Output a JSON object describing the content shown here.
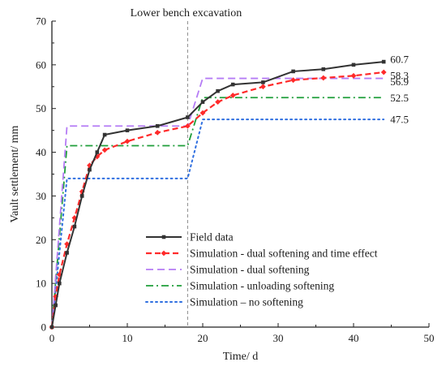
{
  "chart_data": {
    "type": "line",
    "title": "",
    "xlabel": "Time/ d",
    "ylabel": "Vault settlement/ mm",
    "xlim": [
      0,
      50
    ],
    "ylim": [
      0,
      70
    ],
    "x_ticks": [
      0,
      10,
      20,
      30,
      40,
      50
    ],
    "y_ticks": [
      0,
      10,
      20,
      30,
      40,
      50,
      60,
      70
    ],
    "grid": false,
    "legend_position": "bottom-right",
    "annotation": {
      "text": "Lower bench excavation",
      "x": 18
    },
    "series": [
      {
        "name": "Field data",
        "color": "#333333",
        "style": "solid-square-markers",
        "x": [
          0,
          0.5,
          1,
          2,
          3,
          4,
          5,
          6,
          7,
          10,
          14,
          18,
          20,
          22,
          24,
          28,
          32,
          36,
          40,
          44
        ],
        "y": [
          0,
          5,
          10,
          17,
          23,
          30,
          36,
          40,
          44,
          45,
          46,
          48,
          51.5,
          54,
          55.5,
          56,
          58.5,
          59,
          60,
          60.7
        ]
      },
      {
        "name": "Simulation - dual softening and time effect",
        "color": "#ff2a2a",
        "style": "dashed-diamond-markers",
        "x": [
          0,
          0.5,
          1,
          2,
          3,
          4,
          5,
          6,
          7,
          10,
          14,
          18,
          20,
          22,
          24,
          28,
          32,
          36,
          40,
          44
        ],
        "y": [
          0,
          7,
          12,
          19,
          25,
          31,
          37,
          39,
          40.5,
          42.5,
          44.5,
          46,
          49,
          51.5,
          53,
          55,
          56.5,
          57,
          57.5,
          58.3
        ]
      },
      {
        "name": "Simulation - dual softening",
        "color": "#b57cf5",
        "style": "dashed",
        "x": [
          0,
          2,
          18,
          20,
          44
        ],
        "y": [
          0,
          46,
          46,
          56.9,
          56.9
        ]
      },
      {
        "name": "Simulation - unloading softening",
        "color": "#1f9e3a",
        "style": "dash-dot",
        "x": [
          0,
          2,
          18,
          20,
          44
        ],
        "y": [
          0,
          41.5,
          41.5,
          52.5,
          52.5
        ]
      },
      {
        "name": "Simulation – no softening",
        "color": "#2f6fe0",
        "style": "dotted",
        "x": [
          0,
          2,
          18,
          20,
          44
        ],
        "y": [
          0,
          34,
          34,
          47.5,
          47.5
        ]
      }
    ],
    "end_labels": [
      "60.7",
      "58.3",
      "56.9",
      "52.5",
      "47.5"
    ]
  }
}
